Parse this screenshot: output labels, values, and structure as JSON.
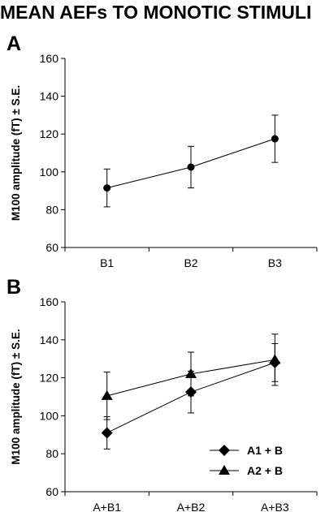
{
  "title": "MEAN AEFs TO MONOTIC STIMULI",
  "chart_data": [
    {
      "panel": "A",
      "type": "line",
      "categories": [
        "B1",
        "B2",
        "B3"
      ],
      "ylabel": "M100 amplitude (fT) ± S.E.",
      "ylim": [
        60,
        160
      ],
      "yticks": [
        60,
        80,
        100,
        120,
        140,
        160
      ],
      "grid": false,
      "series": [
        {
          "marker": "circle",
          "color": "#000000",
          "values": [
            91.5,
            102.5,
            117.5
          ],
          "errors": [
            10,
            11,
            12.5
          ]
        }
      ]
    },
    {
      "panel": "B",
      "type": "line",
      "categories": [
        "A+B1",
        "A+B2",
        "A+B3"
      ],
      "ylabel": "M100 amplitude (fT) ± S.E.",
      "ylim": [
        60,
        160
      ],
      "yticks": [
        60,
        80,
        100,
        120,
        140,
        160
      ],
      "grid": false,
      "legend": "bottom-right",
      "series": [
        {
          "name": "A1 + B",
          "marker": "diamond",
          "color": "#000000",
          "values": [
            91,
            112.5,
            128
          ],
          "errors": [
            8.5,
            11,
            10
          ]
        },
        {
          "name": "A2 + B",
          "marker": "triangle",
          "color": "#000000",
          "values": [
            110.5,
            122,
            129.5
          ],
          "errors": [
            12.5,
            11.5,
            13.5
          ]
        }
      ]
    }
  ]
}
